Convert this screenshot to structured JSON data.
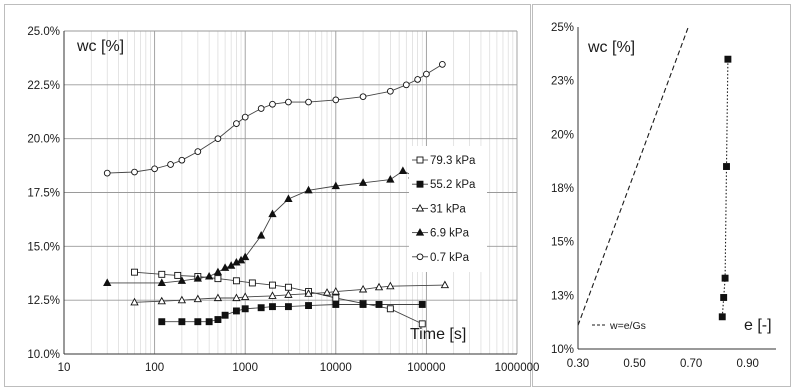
{
  "chart_data": [
    {
      "type": "scatter",
      "x_scale": "log",
      "xlim": [
        10,
        1000000
      ],
      "ylim": [
        10.0,
        25.0
      ],
      "grid": true,
      "legend_position": "right",
      "xlabel": "Time [s]",
      "ylabel": "wc [%]",
      "x_ticks": [
        "10",
        "100",
        "1000",
        "10000",
        "100000",
        "1000000"
      ],
      "y_ticks": [
        "10.0%",
        "12.5%",
        "15.0%",
        "17.5%",
        "20.0%",
        "22.5%",
        "25.0%"
      ],
      "series": [
        {
          "name": "79.3 kPa",
          "marker": "open-square",
          "x": [
            60,
            120,
            180,
            300,
            500,
            800,
            1200,
            2000,
            3000,
            5000,
            10000,
            20000,
            40000,
            90000
          ],
          "y": [
            13.8,
            13.7,
            13.65,
            13.6,
            13.5,
            13.4,
            13.3,
            13.2,
            13.1,
            12.9,
            12.6,
            12.35,
            12.1,
            11.4
          ]
        },
        {
          "name": "55.2 kPa",
          "marker": "filled-square",
          "x": [
            120,
            200,
            300,
            400,
            500,
            600,
            800,
            1000,
            1500,
            2000,
            3000,
            5000,
            10000,
            20000,
            30000,
            90000
          ],
          "y": [
            11.5,
            11.5,
            11.5,
            11.5,
            11.6,
            11.8,
            12.0,
            12.1,
            12.15,
            12.2,
            12.2,
            12.25,
            12.3,
            12.3,
            12.3,
            12.3
          ]
        },
        {
          "name": "31 kPa",
          "marker": "open-triangle",
          "x": [
            60,
            120,
            200,
            300,
            500,
            800,
            1000,
            2000,
            3000,
            5000,
            8000,
            10000,
            20000,
            30000,
            40000,
            160000
          ],
          "y": [
            12.4,
            12.45,
            12.5,
            12.55,
            12.6,
            12.6,
            12.65,
            12.7,
            12.75,
            12.8,
            12.85,
            12.9,
            13.0,
            13.1,
            13.15,
            13.2
          ]
        },
        {
          "name": "6.9 kPa",
          "marker": "filled-triangle",
          "x": [
            30,
            120,
            200,
            300,
            400,
            500,
            600,
            700,
            800,
            900,
            1000,
            1500,
            2000,
            3000,
            5000,
            10000,
            20000,
            40000,
            55000,
            70000
          ],
          "y": [
            13.3,
            13.3,
            13.4,
            13.5,
            13.6,
            13.8,
            14.0,
            14.1,
            14.25,
            14.35,
            14.5,
            15.5,
            16.5,
            17.2,
            17.6,
            17.8,
            17.95,
            18.1,
            18.5,
            18.3
          ]
        },
        {
          "name": "0.7 kPa",
          "marker": "open-circle",
          "x": [
            30,
            60,
            100,
            150,
            200,
            300,
            500,
            800,
            1000,
            1500,
            2000,
            3000,
            5000,
            10000,
            20000,
            40000,
            60000,
            80000,
            100000,
            150000
          ],
          "y": [
            18.4,
            18.45,
            18.6,
            18.8,
            19.0,
            19.4,
            20.0,
            20.7,
            21.0,
            21.4,
            21.6,
            21.7,
            21.7,
            21.8,
            21.95,
            22.2,
            22.5,
            22.75,
            23.0,
            23.45
          ]
        }
      ]
    },
    {
      "type": "scatter",
      "xlim": [
        0.3,
        1.0
      ],
      "ylim": [
        10,
        25
      ],
      "grid": false,
      "xlabel": "e [-]",
      "ylabel": "wc [%]",
      "x_ticks": [
        "0.30",
        "0.50",
        "0.70",
        "0.90"
      ],
      "y_ticks": [
        "10%",
        "13%",
        "15%",
        "18%",
        "20%",
        "23%",
        "25%"
      ],
      "series": [
        {
          "name": "w=e/Gs",
          "style": "dashed",
          "x": [
            0.3,
            0.69
          ],
          "y": [
            11.1,
            25.0
          ]
        },
        {
          "marker": "filled-square",
          "style": "dotted",
          "x": [
            0.81,
            0.815,
            0.82,
            0.825,
            0.83
          ],
          "y": [
            11.5,
            12.4,
            13.3,
            18.5,
            23.5
          ]
        }
      ]
    }
  ]
}
